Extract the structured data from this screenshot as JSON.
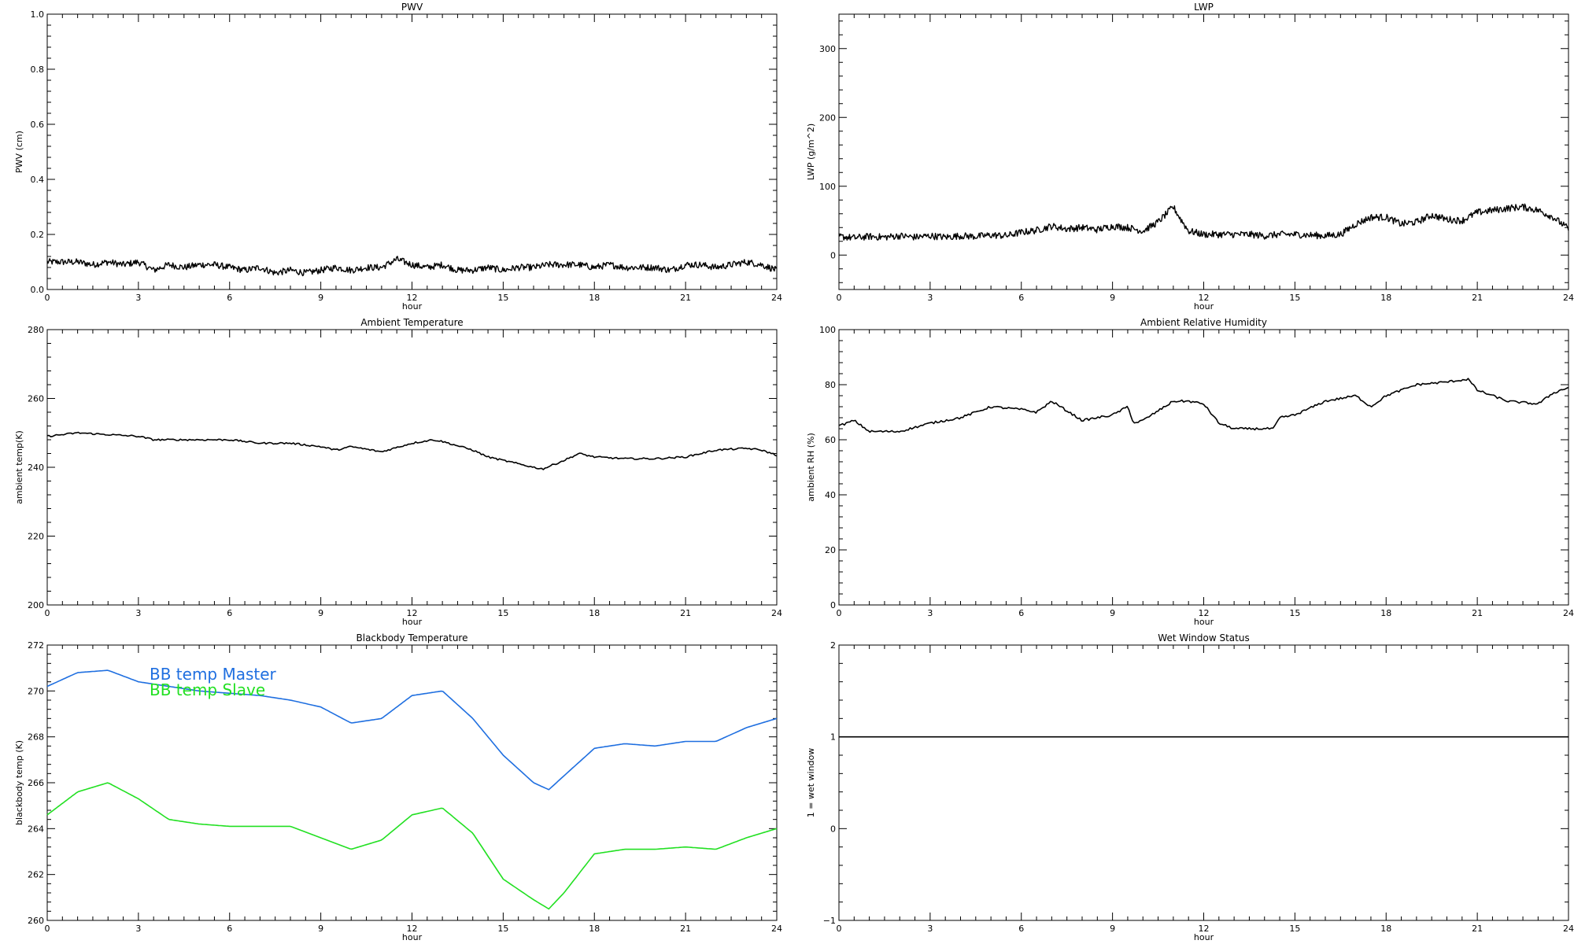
{
  "chart_data": [
    {
      "type": "line",
      "title": "PWV",
      "xlabel": "hour",
      "ylabel": "PWV (cm)",
      "xlim": [
        0,
        24
      ],
      "ylim": [
        0,
        1.0
      ],
      "xticks": [
        "0",
        "3",
        "6",
        "9",
        "12",
        "15",
        "18",
        "21",
        "24"
      ],
      "yticks": [
        "0.0",
        "0.2",
        "0.4",
        "0.6",
        "0.8",
        "1.0"
      ],
      "grid": false,
      "noisy": true,
      "series": [
        {
          "color": "#000000",
          "x": [
            0,
            0.5,
            1,
            1.5,
            2,
            2.5,
            3,
            3.5,
            4,
            4.5,
            5,
            5.5,
            6,
            6.5,
            7,
            7.5,
            8,
            8.5,
            9,
            9.5,
            10,
            10.5,
            11,
            11.5,
            12,
            12.5,
            13,
            13.5,
            14,
            14.5,
            15,
            15.5,
            16,
            16.5,
            17,
            17.5,
            18,
            18.5,
            19,
            19.5,
            20,
            20.5,
            21,
            21.5,
            22,
            22.5,
            23,
            23.5,
            24
          ],
          "y": [
            0.1,
            0.1,
            0.1,
            0.09,
            0.1,
            0.09,
            0.1,
            0.07,
            0.09,
            0.08,
            0.09,
            0.09,
            0.08,
            0.07,
            0.08,
            0.06,
            0.07,
            0.06,
            0.07,
            0.08,
            0.07,
            0.08,
            0.08,
            0.11,
            0.09,
            0.08,
            0.09,
            0.07,
            0.07,
            0.08,
            0.07,
            0.08,
            0.08,
            0.09,
            0.09,
            0.09,
            0.08,
            0.09,
            0.08,
            0.08,
            0.08,
            0.07,
            0.09,
            0.09,
            0.08,
            0.09,
            0.1,
            0.09,
            0.07
          ]
        }
      ]
    },
    {
      "type": "line",
      "title": "LWP",
      "xlabel": "hour",
      "ylabel": "LWP (g/m^2)",
      "xlim": [
        0,
        24
      ],
      "ylim": [
        -50,
        350
      ],
      "xticks": [
        "0",
        "3",
        "6",
        "9",
        "12",
        "15",
        "18",
        "21",
        "24"
      ],
      "yticks": [
        "0",
        "100",
        "200",
        "300"
      ],
      "grid": false,
      "noisy": true,
      "series": [
        {
          "color": "#000000",
          "x": [
            0,
            0.5,
            1,
            1.5,
            2,
            2.5,
            3,
            3.5,
            4,
            4.5,
            5,
            5.5,
            6,
            6.5,
            7,
            7.5,
            8,
            8.5,
            9,
            9.5,
            10,
            10.5,
            11,
            11.2,
            11.5,
            12,
            12.5,
            13,
            13.5,
            14,
            14.5,
            15,
            15.5,
            16,
            16.5,
            17,
            17.5,
            18,
            18.5,
            19,
            19.5,
            20,
            20.5,
            21,
            21.5,
            22,
            22.5,
            23,
            23.5,
            24
          ],
          "y": [
            27,
            25,
            27,
            26,
            28,
            26,
            28,
            26,
            28,
            27,
            29,
            28,
            33,
            36,
            42,
            38,
            40,
            37,
            42,
            40,
            35,
            48,
            70,
            55,
            35,
            30,
            30,
            30,
            30,
            28,
            30,
            30,
            29,
            28,
            30,
            45,
            55,
            55,
            45,
            48,
            58,
            52,
            50,
            62,
            65,
            68,
            70,
            65,
            55,
            38
          ]
        }
      ]
    },
    {
      "type": "line",
      "title": "Ambient Temperature",
      "xlabel": "hour",
      "ylabel": "ambient temp(K)",
      "xlim": [
        0,
        24
      ],
      "ylim": [
        200,
        280
      ],
      "xticks": [
        "0",
        "3",
        "6",
        "9",
        "12",
        "15",
        "18",
        "21",
        "24"
      ],
      "yticks": [
        "200",
        "220",
        "240",
        "260",
        "280"
      ],
      "grid": false,
      "noisy": false,
      "series": [
        {
          "color": "#000000",
          "x": [
            0,
            1,
            2,
            3,
            3.5,
            4,
            5,
            6,
            7,
            8,
            9,
            9.5,
            10,
            11,
            12,
            12.7,
            13,
            14,
            14.5,
            15,
            16,
            16.3,
            17,
            17.5,
            18,
            19,
            20,
            21,
            22,
            23,
            23.5,
            24
          ],
          "y": [
            249,
            250,
            249.5,
            249,
            248,
            248,
            248,
            248,
            247,
            247,
            246,
            245,
            246,
            244.5,
            247,
            248,
            247.5,
            245,
            243,
            242,
            240,
            239.5,
            242,
            244,
            243,
            242.5,
            242.5,
            243,
            245,
            245.5,
            245,
            243.5
          ]
        }
      ]
    },
    {
      "type": "line",
      "title": "Ambient Relative Humidity",
      "xlabel": "hour",
      "ylabel": "ambient RH (%)",
      "xlim": [
        0,
        24
      ],
      "ylim": [
        0,
        100
      ],
      "xticks": [
        "0",
        "3",
        "6",
        "9",
        "12",
        "15",
        "18",
        "21",
        "24"
      ],
      "yticks": [
        "0",
        "20",
        "40",
        "60",
        "80",
        "100"
      ],
      "grid": false,
      "noisy": false,
      "series": [
        {
          "color": "#000000",
          "x": [
            0,
            0.5,
            1,
            2,
            3,
            4,
            5,
            6,
            6.5,
            7,
            8,
            8.5,
            9,
            9.5,
            9.7,
            10,
            11,
            11.5,
            12,
            12.5,
            13,
            14,
            14.3,
            14.5,
            15,
            16,
            17,
            17.5,
            18,
            19,
            20,
            20.7,
            21,
            22,
            23,
            23.5,
            24
          ],
          "y": [
            65,
            67,
            63,
            63,
            66,
            68,
            72,
            71,
            70,
            74,
            67,
            68,
            69,
            72,
            66,
            67,
            74,
            74,
            73,
            66,
            64,
            64,
            64,
            68,
            69,
            74,
            76,
            72,
            76,
            80,
            81,
            82,
            78,
            74,
            73,
            77,
            79
          ]
        }
      ]
    },
    {
      "type": "line",
      "title": "Blackbody Temperature",
      "xlabel": "hour",
      "ylabel": "blackbody temp (K)",
      "xlim": [
        0,
        24
      ],
      "ylim": [
        260,
        272
      ],
      "xticks": [
        "0",
        "3",
        "6",
        "9",
        "12",
        "15",
        "18",
        "21",
        "24"
      ],
      "yticks": [
        "260",
        "262",
        "264",
        "266",
        "268",
        "270",
        "272"
      ],
      "grid": false,
      "noisy": false,
      "legend": "top-left",
      "series": [
        {
          "name": "BB temp Master",
          "color": "#1f6fe0",
          "x": [
            0,
            1,
            2,
            3,
            4,
            5,
            6,
            7,
            8,
            9,
            10,
            11,
            12,
            13,
            14,
            15,
            16,
            16.5,
            17,
            18,
            19,
            20,
            21,
            22,
            23,
            24
          ],
          "y": [
            270.2,
            270.8,
            270.9,
            270.4,
            270.2,
            270.0,
            269.9,
            269.8,
            269.6,
            269.3,
            268.6,
            268.8,
            269.8,
            270.0,
            268.8,
            267.2,
            266.0,
            265.7,
            266.3,
            267.5,
            267.7,
            267.6,
            267.8,
            267.8,
            268.4,
            268.8
          ]
        },
        {
          "name": "BB temp Slave",
          "color": "#22e022",
          "x": [
            0,
            1,
            2,
            3,
            4,
            5,
            6,
            7,
            8,
            9,
            10,
            11,
            12,
            13,
            14,
            15,
            16,
            16.5,
            17,
            18,
            19,
            20,
            21,
            22,
            23,
            24
          ],
          "y": [
            264.6,
            265.6,
            266.0,
            265.3,
            264.4,
            264.2,
            264.1,
            264.1,
            264.1,
            263.6,
            263.1,
            263.5,
            264.6,
            264.9,
            263.8,
            261.8,
            260.9,
            260.5,
            261.2,
            262.9,
            263.1,
            263.1,
            263.2,
            263.1,
            263.6,
            264.0
          ]
        }
      ]
    },
    {
      "type": "line",
      "title": "Wet Window Status",
      "xlabel": "hour",
      "ylabel": "1 = wet window",
      "xlim": [
        0,
        24
      ],
      "ylim": [
        -1,
        2
      ],
      "xticks": [
        "0",
        "3",
        "6",
        "9",
        "12",
        "15",
        "18",
        "21",
        "24"
      ],
      "yticks": [
        "−1",
        "0",
        "1",
        "2"
      ],
      "grid": false,
      "noisy": false,
      "series": [
        {
          "color": "#000000",
          "x": [
            0,
            24
          ],
          "y": [
            1,
            1
          ]
        }
      ]
    }
  ]
}
